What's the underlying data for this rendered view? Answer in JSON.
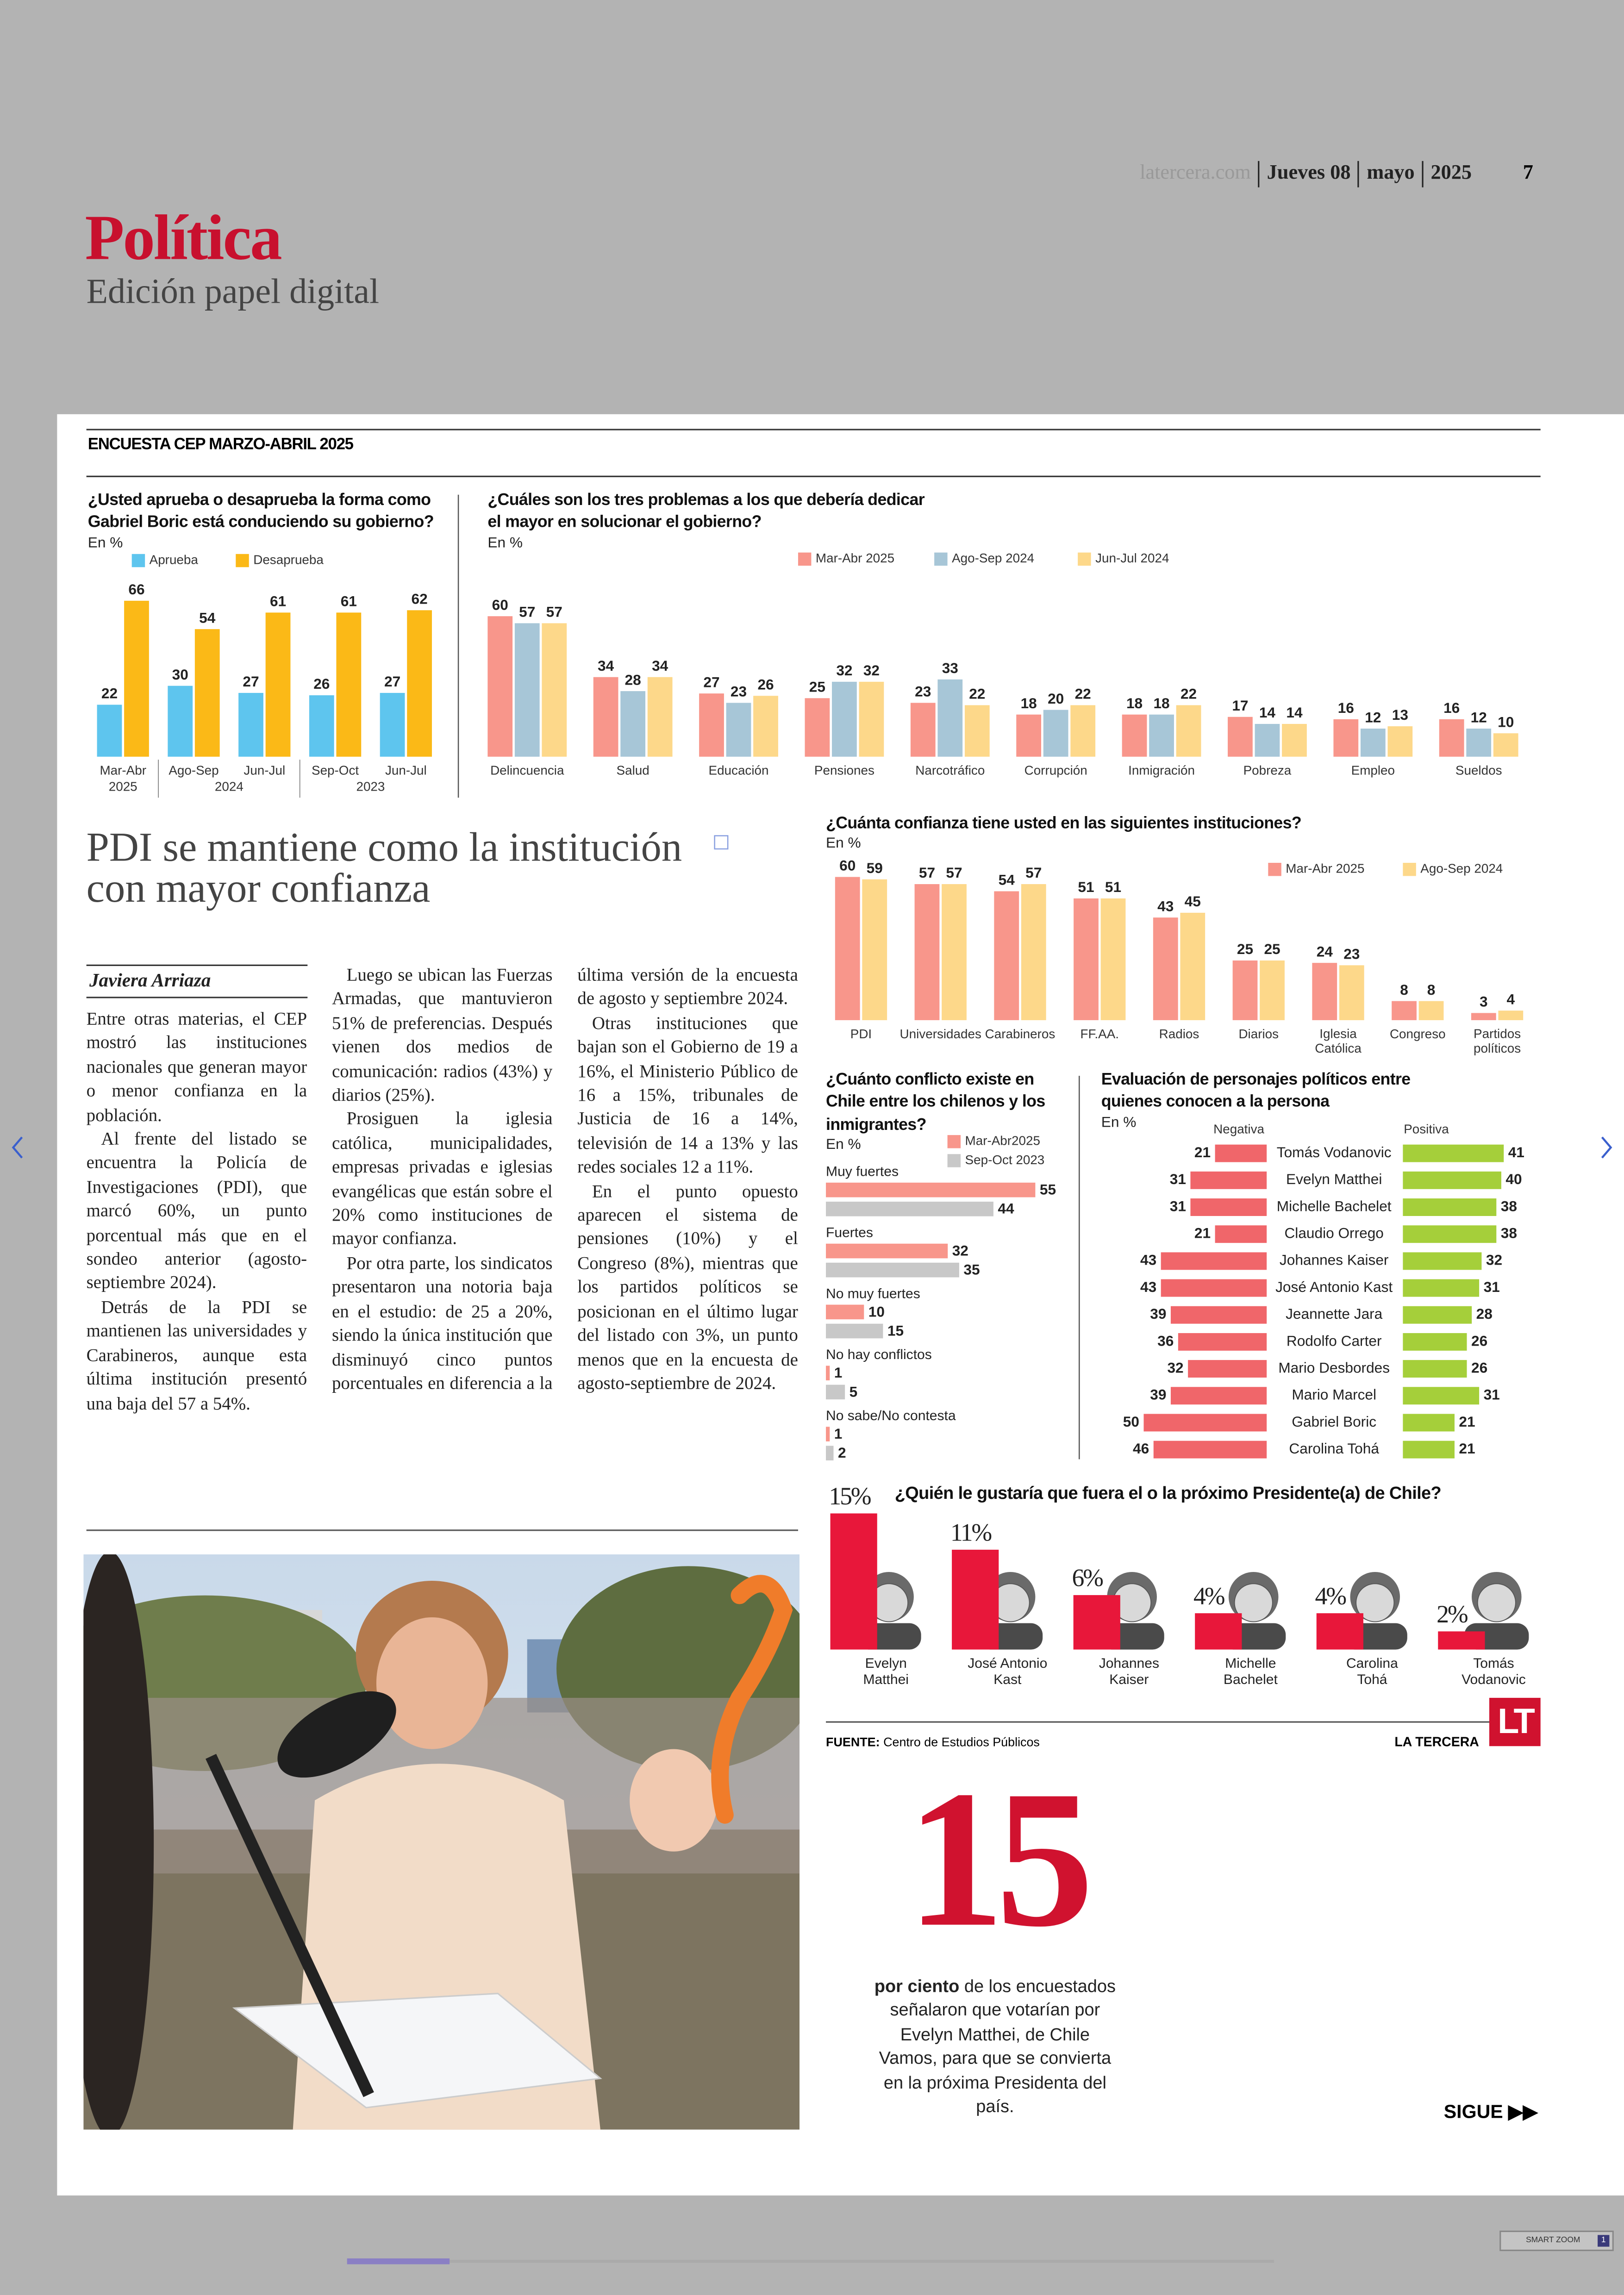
{
  "header": {
    "site": "latercera.com",
    "day": "Jueves 08",
    "month": "mayo",
    "year": "2025",
    "page": "7",
    "section": "Política",
    "edition": "Edición papel digital"
  },
  "survey_title": "ENCUESTA CEP MARZO-ABRIL 2025",
  "chart_data": [
    {
      "type": "bar",
      "title": "¿Usted aprueba o desaprueba la forma como Gabriel Boric está conduciendo su gobierno?",
      "subtitle": "En %",
      "categories": [
        "Mar-Abr",
        "Ago-Sep",
        "Jun-Jul",
        "Sep-Oct",
        "Jun-Jul"
      ],
      "category_groups": [
        {
          "label": "2025",
          "size": 1
        },
        {
          "label": "2024",
          "size": 2
        },
        {
          "label": "2023",
          "size": 2
        }
      ],
      "series": [
        {
          "name": "Aprueba",
          "color": "#5ec5ee",
          "values": [
            22,
            30,
            27,
            26,
            27
          ]
        },
        {
          "name": "Desaprueba",
          "color": "#fbb917",
          "values": [
            66,
            54,
            61,
            61,
            62
          ]
        }
      ],
      "ylim": [
        0,
        70
      ]
    },
    {
      "type": "bar",
      "title": "¿Cuáles son los tres problemas a los que debería dedicar el mayor en solucionar el gobierno?",
      "subtitle": "En %",
      "categories": [
        "Delincuencia",
        "Salud",
        "Educación",
        "Pensiones",
        "Narcotráfico",
        "Corrupción",
        "Inmigración",
        "Pobreza",
        "Empleo",
        "Sueldos"
      ],
      "series": [
        {
          "name": "Mar-Abr 2025",
          "color": "#f8968b",
          "values": [
            60,
            34,
            27,
            25,
            23,
            18,
            18,
            17,
            16,
            16
          ]
        },
        {
          "name": "Ago-Sep 2024",
          "color": "#a7c6d7",
          "values": [
            57,
            28,
            23,
            32,
            33,
            20,
            18,
            14,
            12,
            12
          ]
        },
        {
          "name": "Jun-Jul 2024",
          "color": "#fdd88a",
          "values": [
            57,
            34,
            26,
            32,
            22,
            22,
            22,
            14,
            13,
            10
          ]
        }
      ],
      "ylim": [
        0,
        65
      ]
    },
    {
      "type": "bar",
      "title": "¿Cuánta confianza tiene usted en las siguientes instituciones?",
      "subtitle": "En %",
      "categories": [
        "PDI",
        "Universidades",
        "Carabineros",
        "FF.AA.",
        "Radios",
        "Diarios",
        "Iglesia Católica",
        "Congreso",
        "Partidos políticos"
      ],
      "series": [
        {
          "name": "Mar-Abr 2025",
          "color": "#f8968b",
          "values": [
            60,
            57,
            54,
            51,
            43,
            25,
            24,
            8,
            3
          ]
        },
        {
          "name": "Ago-Sep 2024",
          "color": "#fdd88a",
          "values": [
            59,
            57,
            57,
            51,
            45,
            25,
            23,
            8,
            4
          ]
        }
      ],
      "ylim": [
        0,
        65
      ]
    },
    {
      "type": "bar",
      "orientation": "horizontal",
      "title": "¿Cuánto conflicto existe en Chile entre los chilenos y los inmigrantes?",
      "subtitle": "En %",
      "categories": [
        "Muy fuertes",
        "Fuertes",
        "No muy fuertes",
        "No hay conflictos",
        "No sabe/No contesta"
      ],
      "series": [
        {
          "name": "Mar-Abr2025",
          "color": "#f8968b",
          "values": [
            55,
            32,
            10,
            1,
            1
          ]
        },
        {
          "name": "Sep-Oct 2023",
          "color": "#c8c8c8",
          "values": [
            44,
            35,
            15,
            5,
            2
          ]
        }
      ],
      "xlim": [
        0,
        60
      ]
    },
    {
      "type": "diverging",
      "title": "Evaluación de personajes políticos entre quienes conocen a la persona",
      "subtitle": "En %",
      "categories": [
        "Tomás Vodanovic",
        "Evelyn Matthei",
        "Michelle Bachelet",
        "Claudio Orrego",
        "Johannes Kaiser",
        "José Antonio Kast",
        "Jeannette Jara",
        "Rodolfo Carter",
        "Mario Desbordes",
        "Mario Marcel",
        "Gabriel Boric",
        "Carolina Tohá"
      ],
      "series": [
        {
          "name": "Negativa",
          "color": "#f0666a",
          "values": [
            21,
            31,
            31,
            21,
            43,
            43,
            39,
            36,
            32,
            39,
            50,
            46
          ]
        },
        {
          "name": "Positiva",
          "color": "#a5cf3a",
          "values": [
            41,
            40,
            38,
            38,
            32,
            31,
            28,
            26,
            26,
            31,
            21,
            21
          ]
        }
      ],
      "xlim": [
        0,
        50
      ]
    },
    {
      "type": "bar",
      "title": "¿Quién le gustaría que fuera el o la próximo Presidente(a) de Chile?",
      "categories": [
        "Evelyn Matthei",
        "José Antonio Kast",
        "Johannes Kaiser",
        "Michelle Bachelet",
        "Carolina Tohá",
        "Tomás Vodanovic"
      ],
      "values": [
        15,
        11,
        6,
        4,
        4,
        2
      ],
      "value_labels": [
        "15%",
        "11%",
        "6%",
        "4%",
        "4%",
        "2%"
      ],
      "color": "#e8173a",
      "ylim": [
        0,
        15
      ]
    }
  ],
  "article": {
    "headline": "PDI se mantiene como la institución con mayor confianza",
    "author": "Javiera Arriaza",
    "paragraphs": [
      "Entre otras materias, el CEP mostró las instituciones nacionales que generan mayor o menor confianza en la población.",
      "Al frente del listado se encuentra la Policía de Investigaciones (PDI), que marcó 60%, un punto porcentual más que en el sondeo anterior (agosto-septiembre 2024).",
      "Detrás de la PDI se mantienen las universidades y Carabineros, aunque esta última institución presentó una baja del 57 a 54%.",
      "Luego se ubican las Fuerzas Armadas, que mantuvieron 51% de preferencias. Después vienen dos medios de comunicación: radios (43%) y diarios (25%).",
      "Prosiguen la iglesia católica, municipalidades, empresas privadas e iglesias evangélicas que están sobre el 20% como instituciones de mayor confianza.",
      "Por otra parte, los sindicatos presentaron una notoria baja en el estudio: de 25 a 20%, siendo la única institución que disminuyó cinco puntos porcentuales en diferencia a la última versión de la encuesta de agosto y septiembre 2024.",
      "Otras instituciones que bajan son el Gobierno de 19 a 16%, el Ministerio Público de 16 a 15%, tribunales de Justicia de 16 a 14%, televisión de 14 a 13% y las redes sociales 12 a 11%.",
      "En el punto opuesto aparecen el sistema de pensiones (10%) y el Congreso (8%), mientras que los partidos políticos se posicionan en el último lugar del listado con 3%, un punto menos que en la encuesta de agosto-septiembre de 2024."
    ]
  },
  "highlight": {
    "number": 15,
    "bold": "por ciento",
    "text": "de los encuestados señalaron que votarían por Evelyn Matthei, de Chile Vamos, para que se convierta en la próxima Presidenta del país."
  },
  "footer": {
    "source_label": "FUENTE:",
    "source": "Centro de Estudios Públicos",
    "brand": "LA TERCERA",
    "logo": "LT",
    "continue": "SIGUE ▶▶"
  },
  "viewer": {
    "zoom": "SMART ZOOM",
    "page": "1"
  }
}
